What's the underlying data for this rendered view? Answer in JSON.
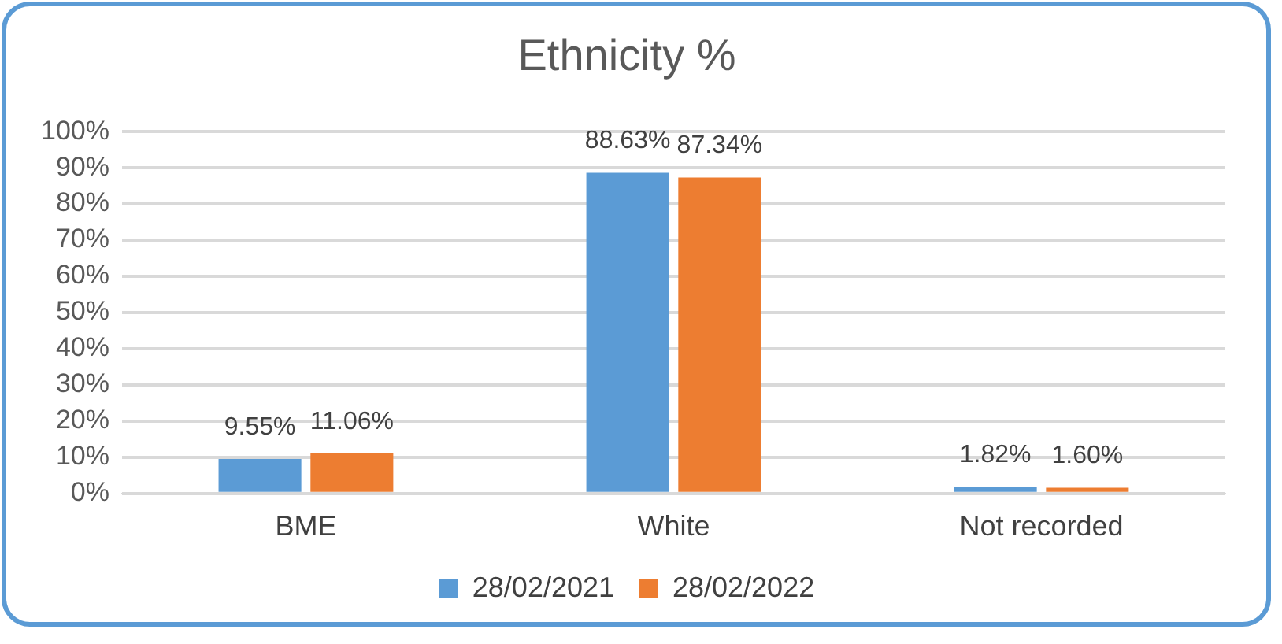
{
  "chart_data": {
    "type": "bar",
    "title": "Ethnicity %",
    "categories": [
      "BME",
      "White",
      "Not recorded"
    ],
    "series": [
      {
        "name": "28/02/2021",
        "color": "#5b9bd5",
        "values": [
          9.55,
          88.63,
          1.82
        ],
        "value_labels": [
          "9.55%",
          "88.63%",
          "1.82%"
        ]
      },
      {
        "name": "28/02/2022",
        "color": "#ed7d31",
        "values": [
          11.06,
          87.34,
          1.6
        ],
        "value_labels": [
          "11.06%",
          "87.34%",
          "1.60%"
        ]
      }
    ],
    "ylim": [
      0,
      100
    ],
    "yticks": [
      {
        "value": 0,
        "label": "0%"
      },
      {
        "value": 10,
        "label": "10%"
      },
      {
        "value": 20,
        "label": "20%"
      },
      {
        "value": 30,
        "label": "30%"
      },
      {
        "value": 40,
        "label": "40%"
      },
      {
        "value": 50,
        "label": "50%"
      },
      {
        "value": 60,
        "label": "60%"
      },
      {
        "value": 70,
        "label": "70%"
      },
      {
        "value": 80,
        "label": "80%"
      },
      {
        "value": 90,
        "label": "90%"
      },
      {
        "value": 100,
        "label": "100%"
      }
    ],
    "grid": "y",
    "legend": "bottom"
  }
}
